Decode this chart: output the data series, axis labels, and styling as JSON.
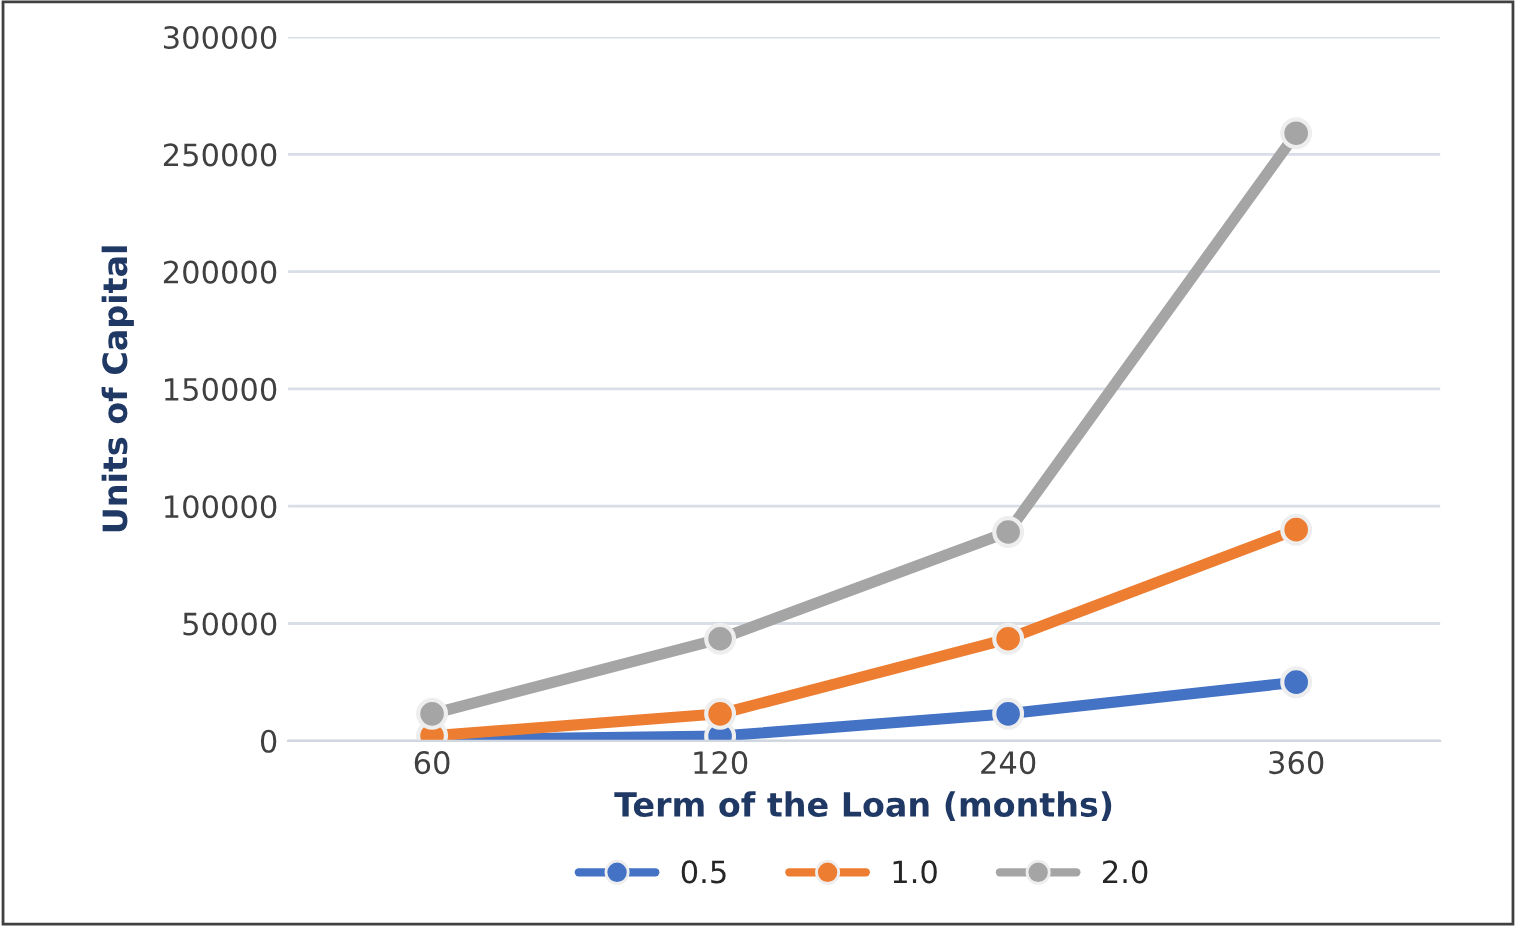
{
  "chart_data": {
    "type": "line",
    "xlabel": "Term of the Loan (months)",
    "ylabel": "Units of Capital",
    "categories": [
      "60",
      "120",
      "240",
      "360"
    ],
    "series": [
      {
        "name": "0.5",
        "color": "#4472c4",
        "values": [
          500,
          2000,
          11500,
          25000
        ]
      },
      {
        "name": "1.0",
        "color": "#ed7d31",
        "values": [
          2100,
          11500,
          43500,
          90000
        ]
      },
      {
        "name": "2.0",
        "color": "#a5a5a5",
        "values": [
          11500,
          43500,
          89000,
          259000
        ]
      }
    ],
    "ylim": [
      0,
      300000
    ],
    "yticks": [
      0,
      50000,
      100000,
      150000,
      200000,
      250000,
      300000
    ],
    "grid": "y",
    "legend": "bottom",
    "marker": "circle",
    "line_style": "solid"
  }
}
